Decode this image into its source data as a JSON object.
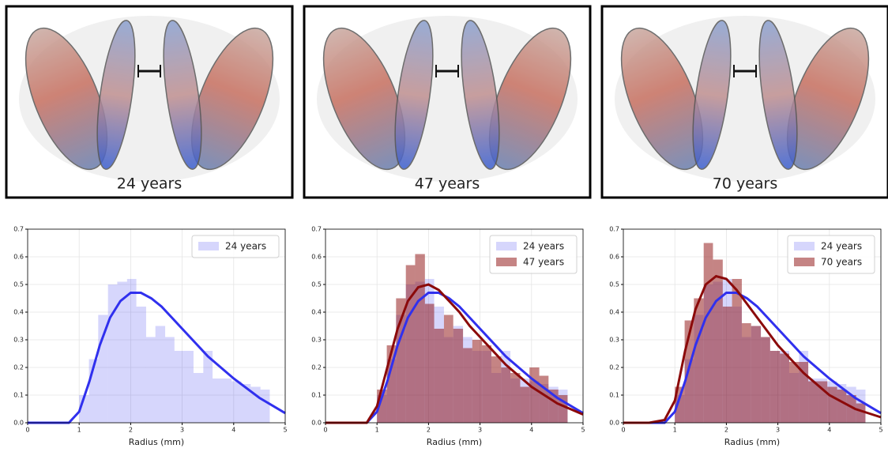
{
  "panels": [
    {
      "label": "24 years"
    },
    {
      "label": "47 years"
    },
    {
      "label": "70 years"
    }
  ],
  "chart_data": [
    {
      "type": "histogram",
      "xlabel": "Radius (mm)",
      "xlim": [
        0,
        5
      ],
      "ylim": [
        0,
        0.7
      ],
      "xticks": [
        0,
        1,
        2,
        3,
        4,
        5
      ],
      "yticks": [
        {
          "value": 0,
          "label": "0.0"
        },
        0.1,
        0.2,
        0.3,
        0.4,
        0.5,
        0.6,
        0.7
      ],
      "grid": true,
      "legend": "upper right",
      "bins": [
        1.0,
        1.19,
        1.37,
        1.56,
        1.74,
        1.93,
        2.11,
        2.3,
        2.48,
        2.67,
        2.85,
        3.04,
        3.22,
        3.41,
        3.59,
        3.78,
        3.96,
        4.15,
        4.33,
        4.52,
        4.7
      ],
      "curve_x": [
        0,
        0.5,
        0.8,
        1.0,
        1.2,
        1.4,
        1.6,
        1.8,
        2.0,
        2.2,
        2.4,
        2.6,
        2.8,
        3.0,
        3.5,
        4.0,
        4.5,
        5.0
      ],
      "series": [
        {
          "name": "24 years",
          "color": "#3030ee",
          "counts": [
            0.1,
            0.23,
            0.39,
            0.5,
            0.51,
            0.52,
            0.42,
            0.31,
            0.35,
            0.31,
            0.26,
            0.26,
            0.18,
            0.26,
            0.16,
            0.16,
            0.15,
            0.14,
            0.13,
            0.12
          ],
          "curve": [
            0,
            0,
            0,
            0.04,
            0.15,
            0.28,
            0.38,
            0.44,
            0.47,
            0.47,
            0.45,
            0.42,
            0.38,
            0.34,
            0.24,
            0.16,
            0.09,
            0.035
          ]
        }
      ]
    },
    {
      "type": "histogram",
      "xlabel": "Radius (mm)",
      "xlim": [
        0,
        5
      ],
      "ylim": [
        0,
        0.7
      ],
      "xticks": [
        0,
        1,
        2,
        3,
        4,
        5
      ],
      "yticks": [
        {
          "value": 0,
          "label": "0.0"
        },
        0.1,
        0.2,
        0.3,
        0.4,
        0.5,
        0.6,
        0.7
      ],
      "grid": true,
      "legend": "upper right",
      "bins": [
        1.0,
        1.19,
        1.37,
        1.56,
        1.74,
        1.93,
        2.11,
        2.3,
        2.48,
        2.67,
        2.85,
        3.04,
        3.22,
        3.41,
        3.59,
        3.78,
        3.96,
        4.15,
        4.33,
        4.52,
        4.7
      ],
      "curve_x": [
        0,
        0.5,
        0.8,
        1.0,
        1.2,
        1.4,
        1.6,
        1.8,
        2.0,
        2.2,
        2.4,
        2.6,
        2.8,
        3.0,
        3.5,
        4.0,
        4.5,
        5.0
      ],
      "series": [
        {
          "name": "24 years",
          "color": "#3030ee",
          "counts": [
            0.1,
            0.23,
            0.39,
            0.5,
            0.51,
            0.52,
            0.42,
            0.31,
            0.35,
            0.31,
            0.26,
            0.26,
            0.18,
            0.26,
            0.16,
            0.16,
            0.15,
            0.14,
            0.13,
            0.12
          ],
          "curve": [
            0,
            0,
            0,
            0.04,
            0.15,
            0.28,
            0.38,
            0.44,
            0.47,
            0.47,
            0.45,
            0.42,
            0.38,
            0.34,
            0.24,
            0.16,
            0.09,
            0.035
          ]
        },
        {
          "name": "47 years",
          "color": "#8b0a0a",
          "counts": [
            0.12,
            0.28,
            0.45,
            0.57,
            0.61,
            0.43,
            0.34,
            0.39,
            0.34,
            0.27,
            0.3,
            0.28,
            0.24,
            0.2,
            0.18,
            0.13,
            0.2,
            0.17,
            0.12,
            0.1
          ],
          "curve": [
            0,
            0,
            0,
            0.06,
            0.2,
            0.34,
            0.44,
            0.49,
            0.5,
            0.48,
            0.44,
            0.4,
            0.35,
            0.31,
            0.21,
            0.13,
            0.07,
            0.03
          ]
        }
      ]
    },
    {
      "type": "histogram",
      "xlabel": "Radius (mm)",
      "xlim": [
        0,
        5
      ],
      "ylim": [
        0,
        0.7
      ],
      "xticks": [
        0,
        1,
        2,
        3,
        4,
        5
      ],
      "yticks": [
        {
          "value": 0,
          "label": "0.0"
        },
        0.1,
        0.2,
        0.3,
        0.4,
        0.5,
        0.6,
        0.7
      ],
      "grid": true,
      "legend": "upper right",
      "bins": [
        1.0,
        1.19,
        1.37,
        1.56,
        1.74,
        1.93,
        2.11,
        2.3,
        2.48,
        2.67,
        2.85,
        3.04,
        3.22,
        3.41,
        3.59,
        3.78,
        3.96,
        4.15,
        4.33,
        4.52,
        4.7
      ],
      "curve_x": [
        0,
        0.5,
        0.8,
        1.0,
        1.2,
        1.4,
        1.6,
        1.8,
        2.0,
        2.2,
        2.4,
        2.6,
        2.8,
        3.0,
        3.5,
        4.0,
        4.5,
        5.0
      ],
      "series": [
        {
          "name": "24 years",
          "color": "#3030ee",
          "counts": [
            0.1,
            0.23,
            0.39,
            0.5,
            0.51,
            0.52,
            0.42,
            0.31,
            0.35,
            0.31,
            0.26,
            0.26,
            0.18,
            0.26,
            0.16,
            0.16,
            0.15,
            0.14,
            0.13,
            0.12
          ],
          "curve": [
            0,
            0,
            0,
            0.04,
            0.15,
            0.28,
            0.38,
            0.44,
            0.47,
            0.47,
            0.45,
            0.42,
            0.38,
            0.34,
            0.24,
            0.16,
            0.09,
            0.035
          ]
        },
        {
          "name": "70 years",
          "color": "#8b0a0a",
          "counts": [
            0.13,
            0.37,
            0.45,
            0.65,
            0.59,
            0.42,
            0.52,
            0.36,
            0.35,
            0.31,
            0.26,
            0.25,
            0.22,
            0.22,
            0.15,
            0.15,
            0.13,
            0.12,
            0.1,
            0.07
          ],
          "curve": [
            0,
            0,
            0.01,
            0.08,
            0.26,
            0.41,
            0.5,
            0.53,
            0.52,
            0.48,
            0.43,
            0.38,
            0.33,
            0.28,
            0.18,
            0.1,
            0.05,
            0.02
          ]
        }
      ]
    }
  ]
}
